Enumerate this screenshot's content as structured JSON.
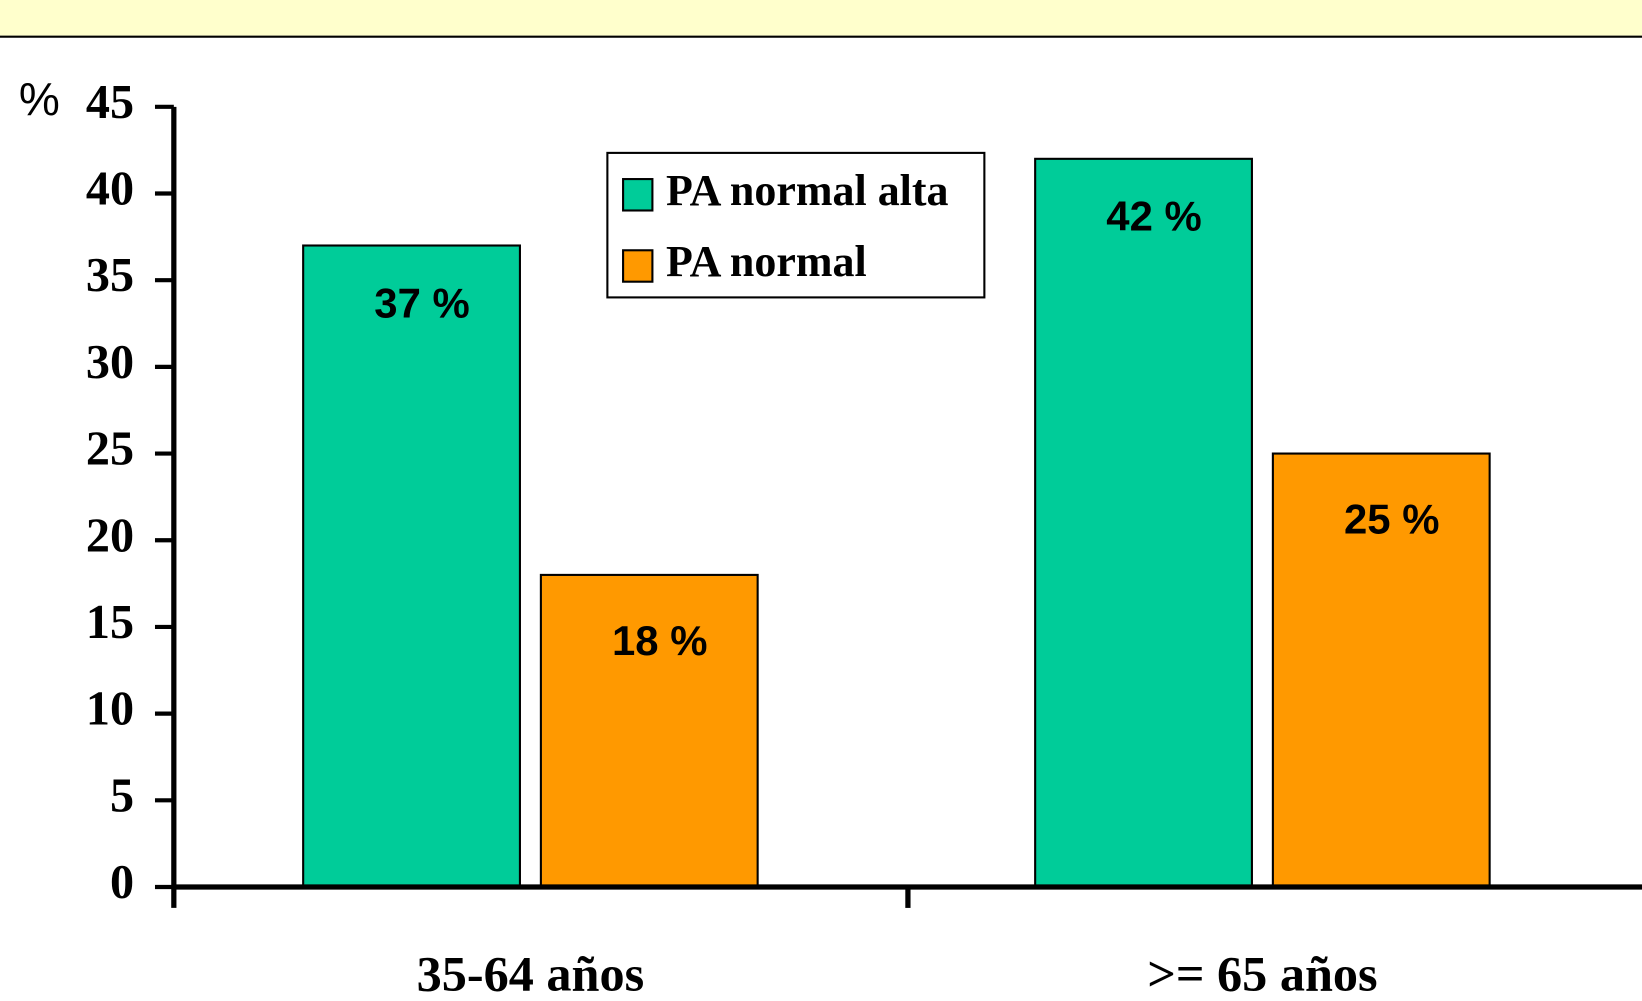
{
  "chart_data": {
    "type": "bar",
    "y_unit_label": "%",
    "categories": [
      "35-64 años",
      ">= 65 años"
    ],
    "series": [
      {
        "name": "PA normal alta",
        "color": "#00cc99",
        "values": [
          37,
          42
        ],
        "value_labels": [
          "37 %",
          "42 %"
        ]
      },
      {
        "name": "PA normal",
        "color": "#ff9900",
        "values": [
          18,
          25
        ],
        "value_labels": [
          "18 %",
          "25 %"
        ]
      }
    ],
    "ylim": [
      0,
      45
    ],
    "yticks": [
      0,
      5,
      10,
      15,
      20,
      25,
      30,
      35,
      40,
      45
    ],
    "grid": false
  }
}
